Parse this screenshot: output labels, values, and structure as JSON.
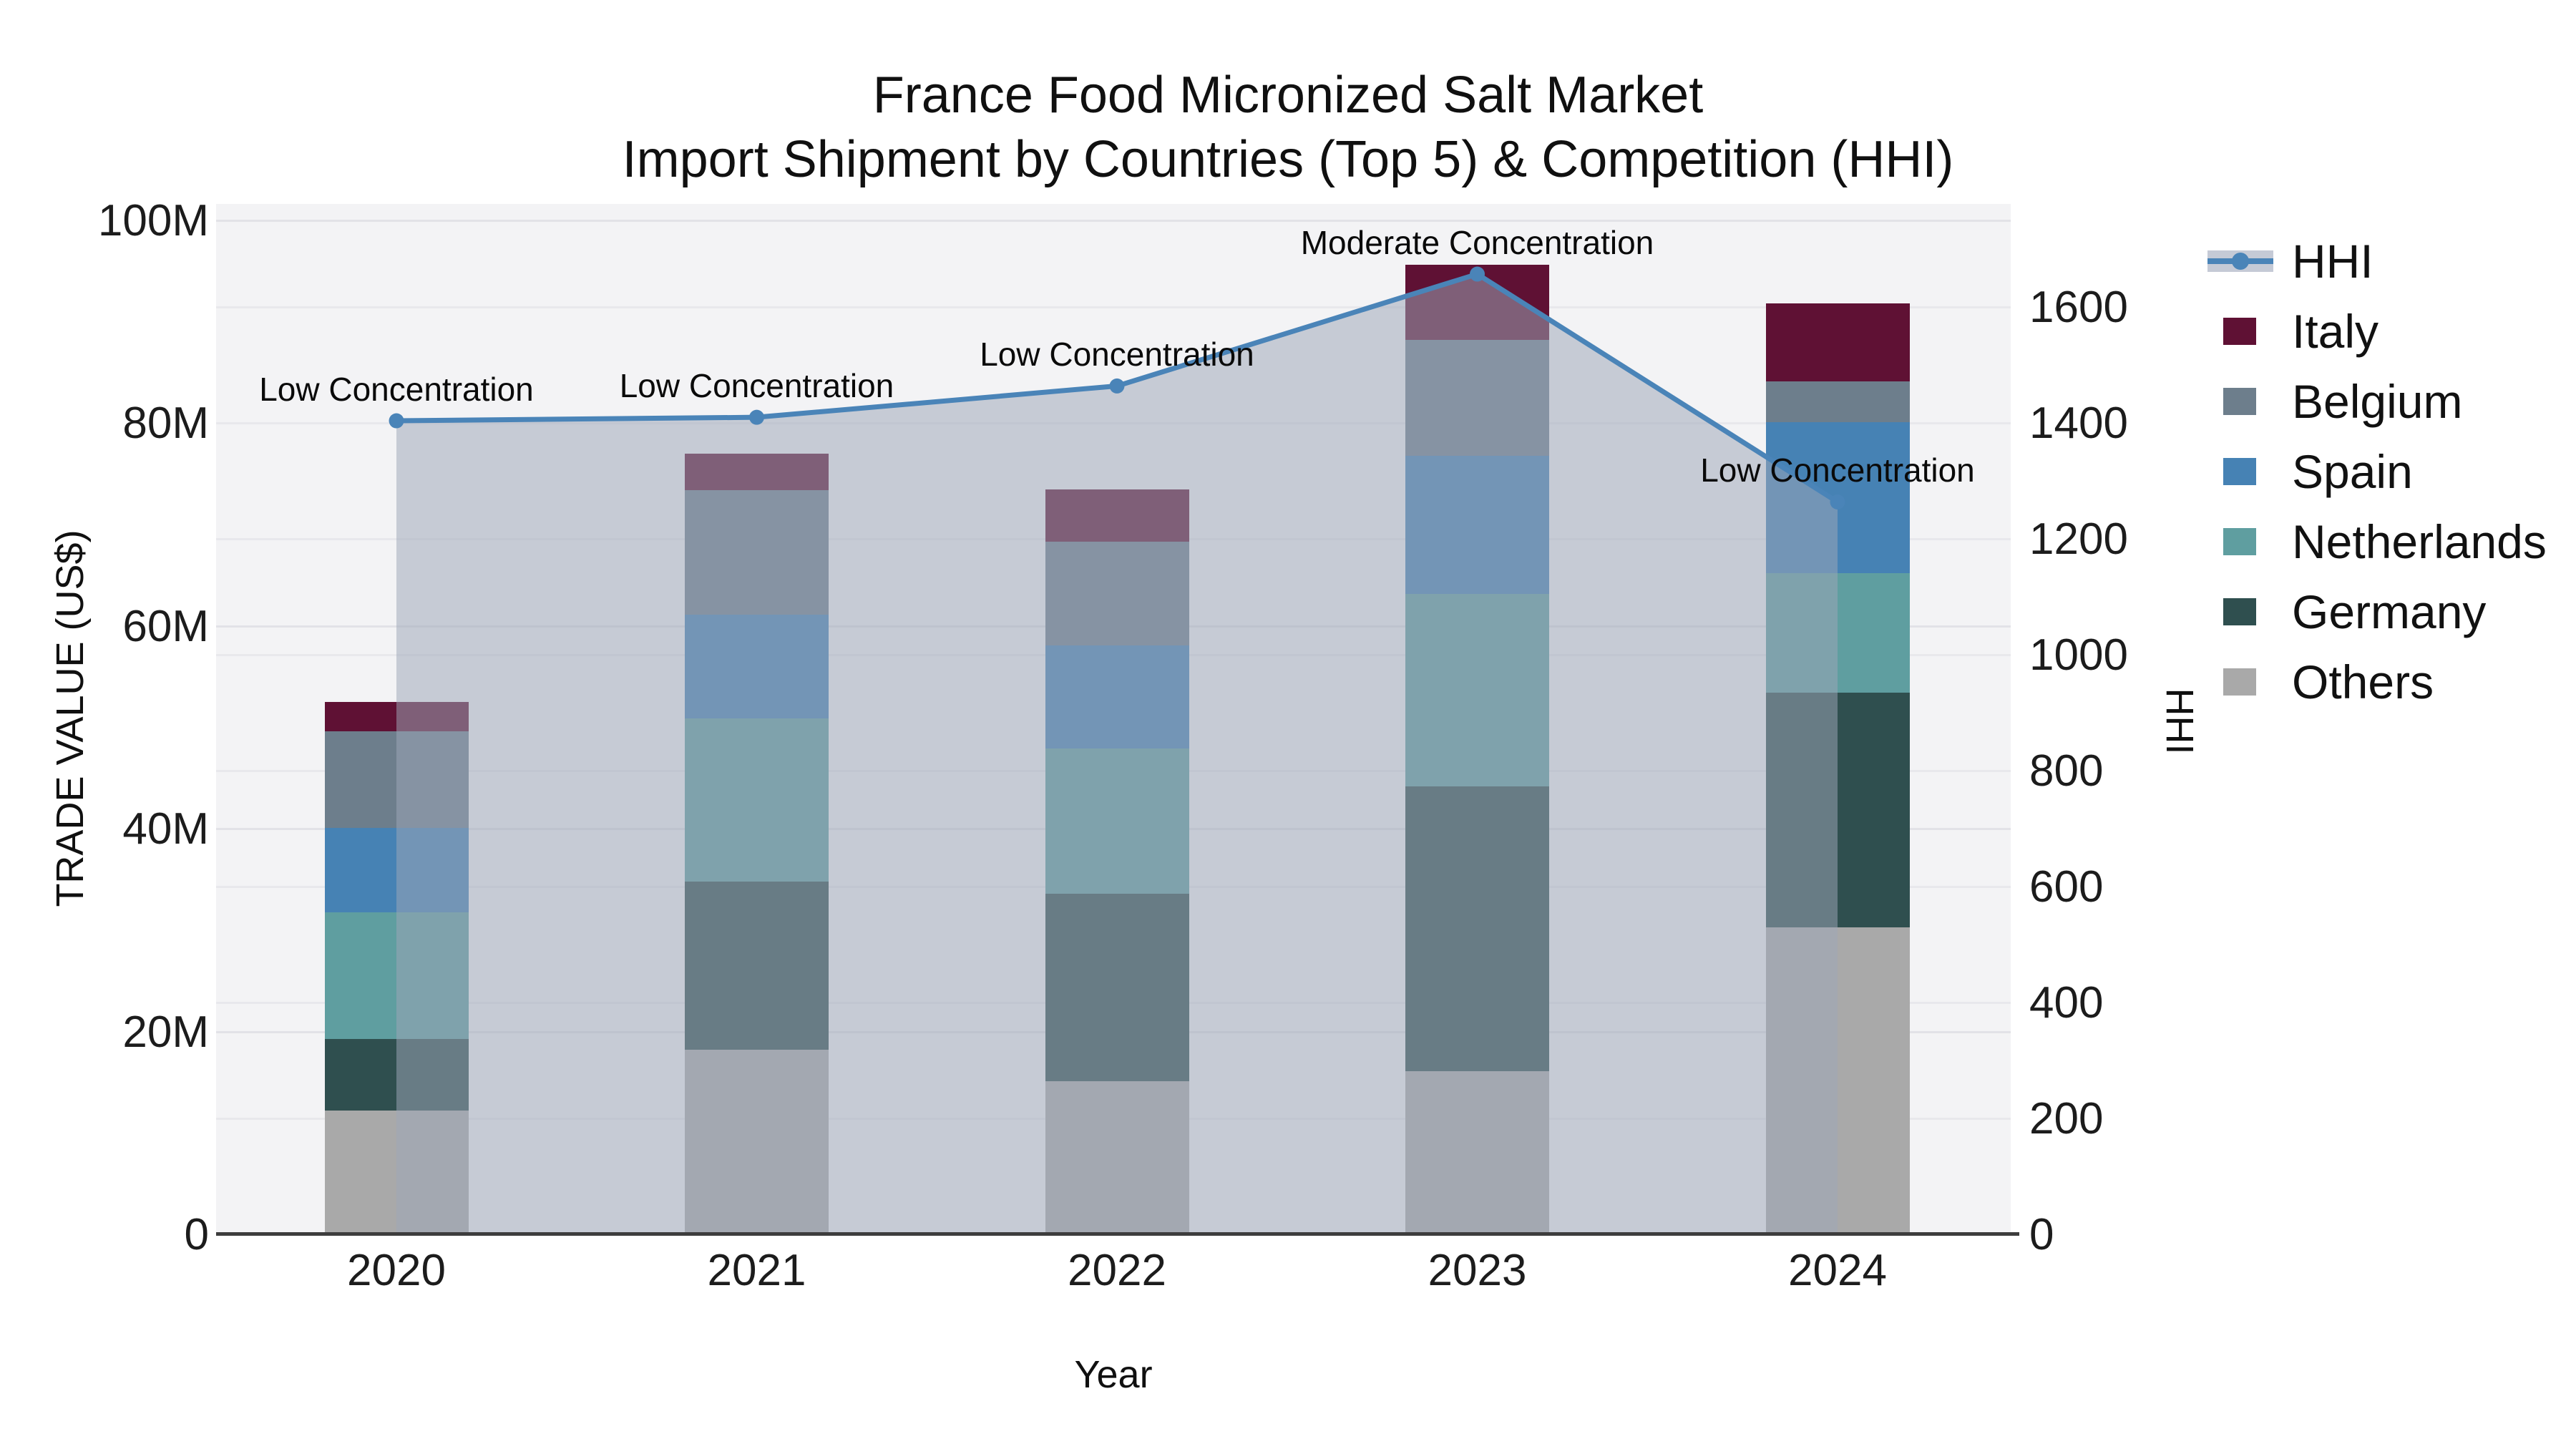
{
  "title": {
    "line1": "France Food Micronized Salt Market",
    "line2": "Import Shipment by Countries (Top 5) & Competition (HHI)"
  },
  "axes": {
    "y_left": {
      "title": "TRADE VALUE (US$)",
      "tick_labels": [
        "0",
        "20M",
        "40M",
        "60M",
        "80M",
        "100M"
      ],
      "tick_values": [
        0,
        20,
        40,
        60,
        80,
        100
      ]
    },
    "y_right": {
      "title": "HHI",
      "tick_labels": [
        "0",
        "200",
        "400",
        "600",
        "800",
        "1000",
        "1200",
        "1400",
        "1600"
      ],
      "tick_values": [
        0,
        200,
        400,
        600,
        800,
        1000,
        1200,
        1400,
        1600
      ]
    },
    "x": {
      "title": "Year",
      "tick_labels": [
        "2020",
        "2021",
        "2022",
        "2023",
        "2024"
      ]
    }
  },
  "legend": [
    {
      "label": "HHI",
      "type": "line",
      "color": "#4a84b8"
    },
    {
      "label": "Italy",
      "type": "swatch",
      "color": "#5f1134"
    },
    {
      "label": "Belgium",
      "type": "swatch",
      "color": "#6d7e8c"
    },
    {
      "label": "Spain",
      "type": "swatch",
      "color": "#4682b4"
    },
    {
      "label": "Netherlands",
      "type": "swatch",
      "color": "#5f9ea0"
    },
    {
      "label": "Germany",
      "type": "swatch",
      "color": "#2f4f4f"
    },
    {
      "label": "Others",
      "type": "swatch",
      "color": "#a9a9a9"
    }
  ],
  "colors": {
    "plot_background": "#f3f3f5",
    "area_fill": "#9ea6b9",
    "hhi_line": "#4a84b8",
    "axis_line": "#3d3d3d"
  },
  "chart_data": {
    "type": "bar",
    "subtype": "stacked-bars-with-line-overlay",
    "title": "France Food Micronized Salt Market — Import Shipment by Countries (Top 5) & Competition (HHI)",
    "xlabel": "Year",
    "ylabel_left": "TRADE VALUE (US$)",
    "ylabel_right": "HHI",
    "categories": [
      "2020",
      "2021",
      "2022",
      "2023",
      "2024"
    ],
    "unit": "million US$",
    "ylim_left_M": [
      0,
      101.5
    ],
    "ylim_right_HHI": [
      0,
      1776
    ],
    "grid": true,
    "legend_position": "right",
    "series": [
      {
        "name": "Others",
        "color": "#a9a9a9",
        "values": [
          12.1,
          18.1,
          15.0,
          16.0,
          30.2
        ]
      },
      {
        "name": "Germany",
        "color": "#2f4f4f",
        "values": [
          7.1,
          16.6,
          18.5,
          28.1,
          23.1
        ]
      },
      {
        "name": "Netherlands",
        "color": "#5f9ea0",
        "values": [
          12.5,
          16.1,
          14.3,
          19.0,
          11.8
        ]
      },
      {
        "name": "Spain",
        "color": "#4682b4",
        "values": [
          8.3,
          10.2,
          10.2,
          13.6,
          14.9
        ]
      },
      {
        "name": "Belgium",
        "color": "#6d7e8c",
        "values": [
          9.5,
          12.3,
          10.2,
          11.4,
          4.0
        ]
      },
      {
        "name": "Italy",
        "color": "#5f1134",
        "values": [
          2.9,
          3.6,
          5.2,
          7.4,
          7.7
        ]
      }
    ],
    "bar_totals_M": [
      52.4,
      76.9,
      73.4,
      95.5,
      91.7
    ],
    "line": {
      "name": "HHI",
      "color": "#4a84b8",
      "values": [
        1402,
        1408,
        1462,
        1655,
        1262
      ],
      "point_labels": [
        "Low Concentration",
        "Low Concentration",
        "Low Concentration",
        "Moderate Concentration",
        "Low Concentration"
      ],
      "area_fill_under_line": true
    }
  }
}
